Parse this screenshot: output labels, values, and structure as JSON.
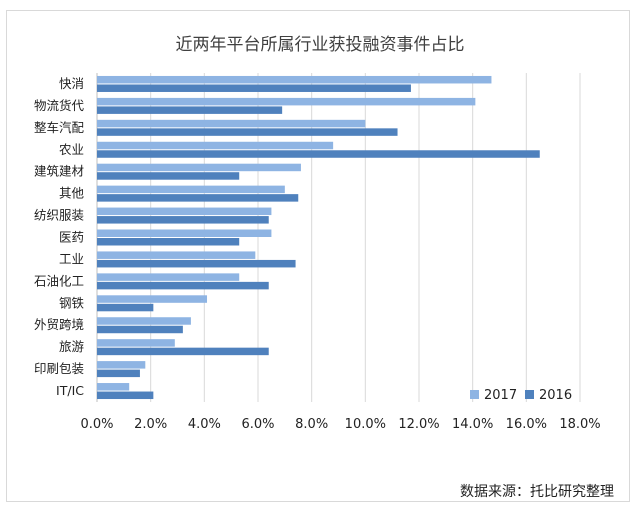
{
  "chart_data": {
    "type": "bar",
    "orientation": "horizontal",
    "title": "近两年平台所属行业获投融资事件占比",
    "categories": [
      "快消",
      "物流货代",
      "整车汽配",
      "农业",
      "建筑建材",
      "其他",
      "纺织服装",
      "医药",
      "工业",
      "石油化工",
      "钢铁",
      "外贸跨境",
      "旅游",
      "印刷包装",
      "IT/IC"
    ],
    "series": [
      {
        "name": "2017",
        "color": "#8eb4e3",
        "values": [
          14.7,
          14.1,
          10.0,
          8.8,
          7.6,
          7.0,
          6.5,
          6.5,
          5.9,
          5.3,
          4.1,
          3.5,
          2.9,
          1.8,
          1.2
        ]
      },
      {
        "name": "2016",
        "color": "#4f81bd",
        "values": [
          11.7,
          6.9,
          11.2,
          16.5,
          5.3,
          7.5,
          6.4,
          5.3,
          7.4,
          6.4,
          2.1,
          3.2,
          6.4,
          1.6,
          2.1
        ]
      }
    ],
    "xlim": [
      0,
      18
    ],
    "xticks": [
      "0.0%",
      "2.0%",
      "4.0%",
      "6.0%",
      "8.0%",
      "10.0%",
      "12.0%",
      "14.0%",
      "16.0%",
      "18.0%"
    ],
    "grid": true,
    "legend_position": "bottom-right"
  },
  "source_text": "数据来源：托比研究整理"
}
